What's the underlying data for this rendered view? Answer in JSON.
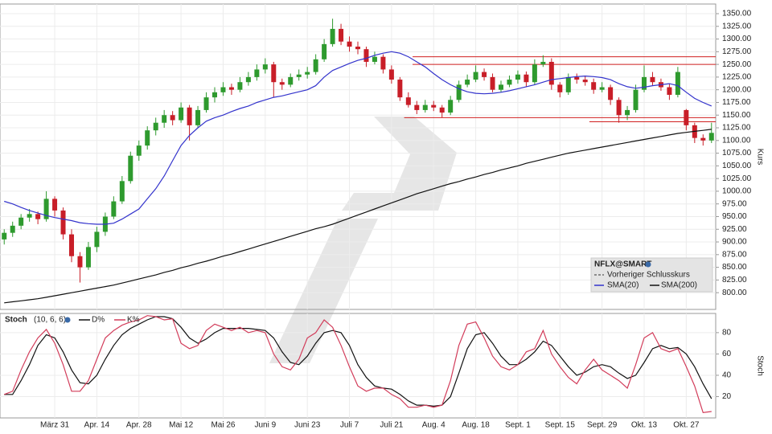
{
  "chart_data": [
    {
      "type": "candlestick",
      "title": "NFLX@SMART",
      "reference_legend": "Vorheriger Schlusskurs",
      "ylabel": "Kurs",
      "up_color": "#2e9a2e",
      "down_color": "#c81e28",
      "grid": true,
      "ylim": [
        767,
        1369
      ],
      "yticks": [
        {
          "value": 800,
          "label": "800.00"
        },
        {
          "value": 825,
          "label": "825.00"
        },
        {
          "value": 850,
          "label": "850.00"
        },
        {
          "value": 875,
          "label": "875.00"
        },
        {
          "value": 900,
          "label": "900.00"
        },
        {
          "value": 925,
          "label": "925.00"
        },
        {
          "value": 950,
          "label": "950.00"
        },
        {
          "value": 975,
          "label": "975.00"
        },
        {
          "value": 1000,
          "label": "1000.00"
        },
        {
          "value": 1025,
          "label": "1025.00"
        },
        {
          "value": 1050,
          "label": "1050.00"
        },
        {
          "value": 1075,
          "label": "1075.00"
        },
        {
          "value": 1100,
          "label": "1100.00"
        },
        {
          "value": 1125,
          "label": "1125.00"
        },
        {
          "value": 1150,
          "label": "1150.00"
        },
        {
          "value": 1175,
          "label": "1175.00"
        },
        {
          "value": 1200,
          "label": "1200.00"
        },
        {
          "value": 1225,
          "label": "1225.00"
        },
        {
          "value": 1250,
          "label": "1250.00"
        },
        {
          "value": 1275,
          "label": "1275.00"
        },
        {
          "value": 1300,
          "label": "1300.00"
        },
        {
          "value": 1325,
          "label": "1325.00"
        },
        {
          "value": 1350,
          "label": "1350.00"
        }
      ],
      "open": [
        905,
        918,
        932,
        948,
        955,
        945,
        985,
        962,
        915,
        872,
        850,
        890,
        920,
        950,
        980,
        1020,
        1070,
        1090,
        1120,
        1135,
        1150,
        1140,
        1165,
        1130,
        1160,
        1185,
        1195,
        1205,
        1200,
        1215,
        1225,
        1240,
        1250,
        1215,
        1210,
        1225,
        1230,
        1235,
        1260,
        1290,
        1320,
        1295,
        1285,
        1280,
        1255,
        1265,
        1240,
        1220,
        1185,
        1170,
        1160,
        1170,
        1165,
        1155,
        1180,
        1210,
        1220,
        1235,
        1225,
        1200,
        1210,
        1220,
        1230,
        1215,
        1250,
        1255,
        1210,
        1195,
        1225,
        1220,
        1215,
        1200,
        1205,
        1180,
        1150,
        1160,
        1200,
        1225,
        1215,
        1205,
        1190,
        1160,
        1130,
        1105,
        1100
      ],
      "high": [
        925,
        940,
        955,
        965,
        960,
        1000,
        990,
        968,
        925,
        880,
        900,
        930,
        958,
        990,
        1030,
        1078,
        1100,
        1128,
        1145,
        1160,
        1158,
        1175,
        1170,
        1168,
        1195,
        1205,
        1215,
        1212,
        1225,
        1235,
        1250,
        1262,
        1255,
        1222,
        1232,
        1240,
        1245,
        1270,
        1300,
        1340,
        1330,
        1305,
        1295,
        1285,
        1275,
        1270,
        1248,
        1225,
        1195,
        1178,
        1180,
        1178,
        1170,
        1188,
        1218,
        1230,
        1248,
        1242,
        1232,
        1218,
        1228,
        1238,
        1236,
        1260,
        1268,
        1262,
        1215,
        1232,
        1232,
        1228,
        1222,
        1215,
        1210,
        1185,
        1168,
        1210,
        1248,
        1235,
        1222,
        1212,
        1245,
        1162,
        1135,
        1112,
        1135
      ],
      "low": [
        895,
        910,
        925,
        940,
        935,
        940,
        950,
        905,
        860,
        820,
        845,
        880,
        912,
        945,
        975,
        1015,
        1060,
        1082,
        1110,
        1125,
        1130,
        1135,
        1100,
        1125,
        1155,
        1175,
        1188,
        1190,
        1195,
        1208,
        1218,
        1232,
        1185,
        1200,
        1205,
        1218,
        1222,
        1230,
        1255,
        1285,
        1288,
        1275,
        1270,
        1245,
        1250,
        1232,
        1212,
        1178,
        1165,
        1152,
        1155,
        1158,
        1145,
        1150,
        1175,
        1205,
        1215,
        1218,
        1195,
        1195,
        1205,
        1212,
        1205,
        1210,
        1245,
        1200,
        1185,
        1190,
        1212,
        1208,
        1192,
        1195,
        1170,
        1135,
        1140,
        1155,
        1195,
        1208,
        1198,
        1180,
        1185,
        1120,
        1095,
        1090,
        1095
      ],
      "close": [
        918,
        932,
        948,
        955,
        945,
        985,
        962,
        915,
        872,
        850,
        890,
        920,
        950,
        980,
        1020,
        1070,
        1090,
        1120,
        1135,
        1150,
        1140,
        1165,
        1130,
        1160,
        1185,
        1195,
        1205,
        1200,
        1215,
        1225,
        1240,
        1250,
        1215,
        1210,
        1225,
        1230,
        1235,
        1260,
        1290,
        1320,
        1295,
        1285,
        1280,
        1255,
        1265,
        1240,
        1220,
        1185,
        1170,
        1160,
        1170,
        1165,
        1155,
        1180,
        1210,
        1220,
        1235,
        1225,
        1200,
        1210,
        1220,
        1230,
        1215,
        1250,
        1255,
        1210,
        1195,
        1225,
        1220,
        1215,
        1200,
        1205,
        1180,
        1150,
        1160,
        1200,
        1225,
        1215,
        1205,
        1190,
        1235,
        1130,
        1105,
        1100,
        1115
      ],
      "series": [
        {
          "name": "SMA(20)",
          "color": "#3333cc",
          "values": [
            980,
            975,
            968,
            962,
            957,
            952,
            948,
            945,
            942,
            938,
            936,
            935,
            935,
            937,
            945,
            955,
            965,
            985,
            1005,
            1030,
            1060,
            1090,
            1110,
            1125,
            1138,
            1145,
            1150,
            1157,
            1163,
            1168,
            1175,
            1180,
            1185,
            1188,
            1192,
            1196,
            1200,
            1208,
            1225,
            1238,
            1245,
            1252,
            1258,
            1262,
            1268,
            1272,
            1275,
            1272,
            1265,
            1255,
            1245,
            1232,
            1220,
            1210,
            1202,
            1196,
            1193,
            1192,
            1193,
            1195,
            1198,
            1202,
            1206,
            1210,
            1215,
            1220,
            1222,
            1224,
            1226,
            1227,
            1226,
            1224,
            1220,
            1212,
            1206,
            1203,
            1205,
            1208,
            1210,
            1212,
            1208,
            1195,
            1183,
            1175,
            1168
          ]
        },
        {
          "name": "SMA(200)",
          "color": "#111111",
          "values": [
            780,
            782,
            784,
            786,
            788,
            791,
            794,
            797,
            800,
            803,
            806,
            809,
            812,
            815,
            819,
            823,
            827,
            831,
            835,
            840,
            844,
            849,
            853,
            858,
            862,
            867,
            872,
            876,
            881,
            886,
            891,
            896,
            901,
            906,
            911,
            916,
            921,
            926,
            930,
            935,
            941,
            947,
            953,
            959,
            965,
            971,
            977,
            983,
            989,
            995,
            1000,
            1005,
            1010,
            1015,
            1019,
            1024,
            1028,
            1033,
            1037,
            1042,
            1046,
            1050,
            1055,
            1059,
            1063,
            1067,
            1071,
            1075,
            1078,
            1081,
            1084,
            1087,
            1090,
            1093,
            1096,
            1099,
            1102,
            1105,
            1108,
            1111,
            1114,
            1116,
            1118,
            1120,
            1122
          ]
        }
      ],
      "reference_color": "#d02020",
      "reference_lines": [
        {
          "value": 1265,
          "start": 49
        },
        {
          "value": 1250,
          "start": 49
        },
        {
          "value": 1145,
          "start": 48
        },
        {
          "value": 1137,
          "start": 70
        }
      ]
    },
    {
      "type": "line",
      "title": "Stoch",
      "subtitle": "(10, 6, 6)",
      "ylabel": "Stoch",
      "grid": true,
      "ylim": [
        0,
        98
      ],
      "yticks": [
        20,
        40,
        60,
        80
      ],
      "categories": [
        null,
        null,
        null,
        null,
        null,
        null,
        "März 31",
        null,
        null,
        null,
        null,
        "Apr. 14",
        null,
        null,
        null,
        null,
        "Apr. 28",
        null,
        null,
        null,
        null,
        "Mai 12",
        null,
        null,
        null,
        null,
        "Mai 26",
        null,
        null,
        null,
        null,
        "Juni 9",
        null,
        null,
        null,
        null,
        "Juni 23",
        null,
        null,
        null,
        null,
        "Juli 7",
        null,
        null,
        null,
        null,
        "Juli 21",
        null,
        null,
        null,
        null,
        "Aug. 4",
        null,
        null,
        null,
        null,
        "Aug. 18",
        null,
        null,
        null,
        null,
        "Sept. 1",
        null,
        null,
        null,
        null,
        "Sept. 15",
        null,
        null,
        null,
        null,
        "Sept. 29",
        null,
        null,
        null,
        null,
        "Okt. 13",
        null,
        null,
        null,
        null,
        "Okt. 27",
        null,
        null,
        null
      ],
      "series": [
        {
          "name": "D%",
          "color": "#111111",
          "values": [
            22,
            22,
            35,
            50,
            68,
            78,
            75,
            62,
            45,
            33,
            32,
            40,
            55,
            68,
            78,
            84,
            88,
            92,
            95,
            95,
            93,
            85,
            75,
            70,
            74,
            80,
            84,
            84,
            84,
            84,
            83,
            82,
            75,
            62,
            52,
            50,
            58,
            70,
            80,
            82,
            80,
            68,
            50,
            38,
            30,
            28,
            27,
            22,
            16,
            12,
            12,
            11,
            12,
            20,
            42,
            65,
            78,
            80,
            70,
            58,
            50,
            50,
            55,
            62,
            72,
            68,
            58,
            48,
            40,
            43,
            48,
            50,
            48,
            42,
            37,
            40,
            52,
            65,
            68,
            65,
            66,
            60,
            48,
            32,
            18
          ]
        },
        {
          "name": "K%",
          "color": "#d23c5a",
          "values": [
            22,
            25,
            45,
            62,
            75,
            83,
            70,
            50,
            25,
            25,
            35,
            55,
            75,
            82,
            87,
            90,
            92,
            96,
            95,
            92,
            93,
            70,
            65,
            68,
            82,
            88,
            85,
            82,
            85,
            80,
            82,
            80,
            60,
            48,
            45,
            55,
            75,
            80,
            92,
            85,
            68,
            48,
            30,
            25,
            28,
            28,
            22,
            18,
            10,
            10,
            12,
            10,
            12,
            35,
            68,
            88,
            90,
            75,
            58,
            48,
            45,
            50,
            62,
            65,
            82,
            60,
            48,
            38,
            32,
            45,
            55,
            45,
            40,
            35,
            28,
            50,
            75,
            80,
            65,
            62,
            65,
            48,
            30,
            5,
            6
          ]
        }
      ]
    }
  ]
}
